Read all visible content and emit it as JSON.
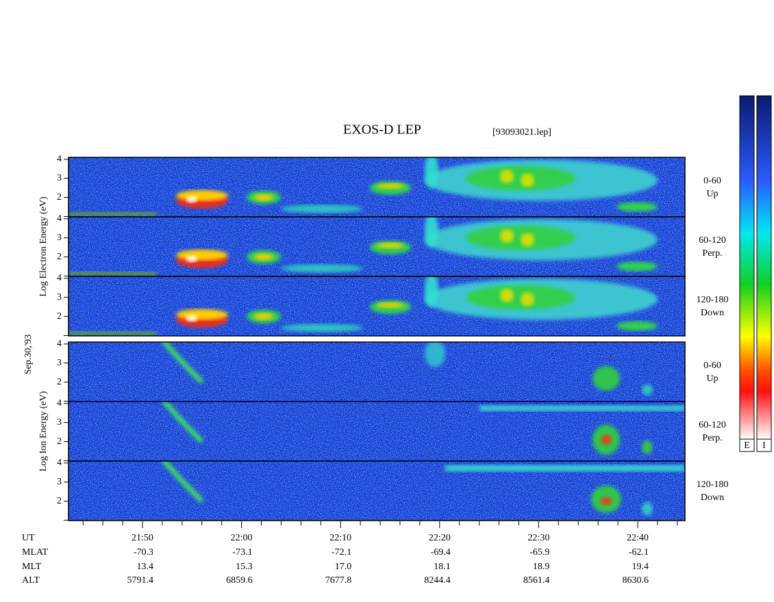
{
  "header": {
    "title": "EXOS-D LEP",
    "file": "[93093021.lep]"
  },
  "chart_data": {
    "type": "spectrogram",
    "date": "Sep.30,'93",
    "groups": [
      {
        "axis_label": "Log  Electron  Energy (eV)",
        "panels": [
          {
            "angle": "0-60",
            "direction": "Up"
          },
          {
            "angle": "60-120",
            "direction": "Perp."
          },
          {
            "angle": "120-180",
            "direction": "Down"
          }
        ]
      },
      {
        "axis_label": "Log  Ion  Energy (eV)",
        "panels": [
          {
            "angle": "0-60",
            "direction": "Up"
          },
          {
            "angle": "60-120",
            "direction": "Perp."
          },
          {
            "angle": "120-180",
            "direction": "Down"
          }
        ]
      }
    ],
    "ylim": [
      0.98,
      4.1
    ],
    "ytick_marks": [
      1,
      2,
      3,
      4
    ],
    "yticks": [
      2,
      3,
      4
    ],
    "colorbar_labels": [
      "E",
      "I"
    ],
    "ephemeris": {
      "row_labels": [
        "UT",
        "MLAT",
        "MLT",
        "ALT"
      ],
      "columns": [
        [
          "21:50",
          -70.3,
          13.4,
          5791.4
        ],
        [
          "22:00",
          -73.1,
          15.3,
          6859.6
        ],
        [
          "22:10",
          -72.1,
          17.0,
          7677.8
        ],
        [
          "22:20",
          -69.4,
          18.1,
          8244.4
        ],
        [
          "22:30",
          -65.9,
          18.9,
          8561.4
        ],
        [
          "22:40",
          -62.1,
          19.4,
          8630.6
        ]
      ]
    }
  }
}
